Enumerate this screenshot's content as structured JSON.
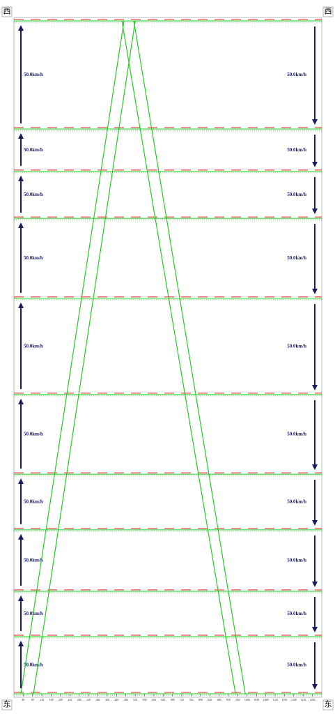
{
  "chart_data": {
    "type": "time-space",
    "corner_labels": {
      "top_left": "西",
      "top_right": "西",
      "bottom_left": "东",
      "bottom_right": "东"
    },
    "xlim": [
      0,
      1320
    ],
    "xticks": [
      40,
      80,
      120,
      160,
      200,
      240,
      280,
      320,
      360,
      400,
      440,
      480,
      520,
      560,
      600,
      640,
      680,
      720,
      760,
      800,
      840,
      880,
      920,
      960,
      1000,
      1040,
      1080,
      1120,
      1160,
      1200,
      1240,
      1280
    ],
    "ylim": [
      0,
      3000
    ],
    "intersections": [
      0,
      255,
      457,
      731,
      979,
      1334,
      1763,
      2120,
      2329,
      2518,
      3000
    ],
    "speed_up": [
      "50.0km/h",
      "50.0km/h",
      "50.0km/h",
      "50.0km/h",
      "50.0km/h",
      "50.0km/h",
      "50.0km/h",
      "50.0km/h",
      "50.0km/h",
      "50.0km/h"
    ],
    "speed_down": [
      "50.0km/h",
      "50.0km/h",
      "50.0km/h",
      "50.0km/h",
      "50.0km/h",
      "50.0km/h",
      "50.0km/h",
      "50.0km/h",
      "50.0km/h",
      "50.0km/h"
    ],
    "series": [
      {
        "color": "#22cc22",
        "x": [
          30,
          472
        ],
        "values": [
          0,
          3000
        ]
      },
      {
        "color": "#22cc22",
        "x": [
          84,
          520
        ],
        "values": [
          0,
          3000
        ]
      },
      {
        "color": "#22cc22",
        "x": [
          463,
          950
        ],
        "values": [
          3000,
          0
        ]
      },
      {
        "color": "#22cc22",
        "x": [
          514,
          992
        ],
        "values": [
          3000,
          0
        ]
      }
    ]
  }
}
